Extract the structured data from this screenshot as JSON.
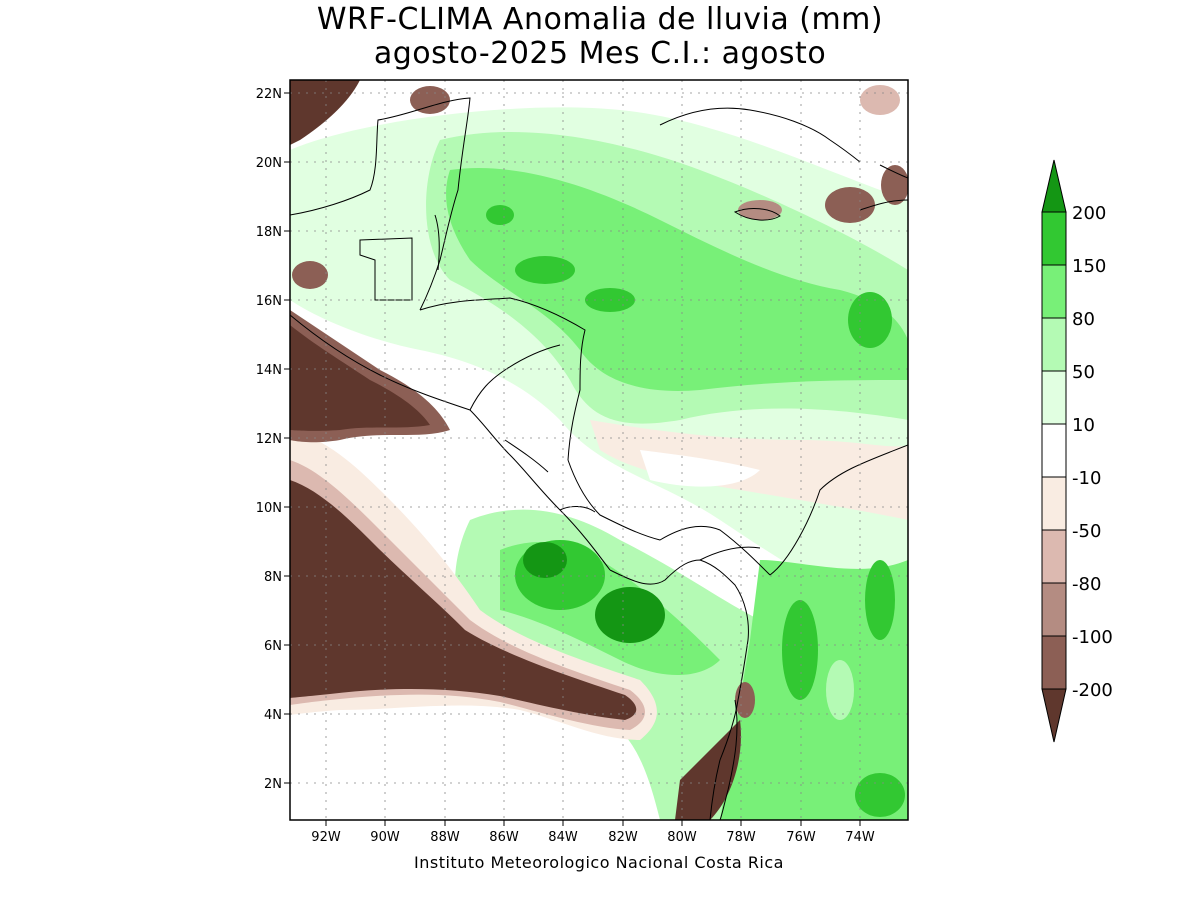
{
  "title_line1": "WRF-CLIMA Anomalia de lluvia (mm)",
  "title_line2": "agosto-2025 Mes C.I.: agosto",
  "credit": "Instituto Meteorologico Nacional Costa Rica",
  "map": {
    "lon_range": [
      -93.3,
      -72.5
    ],
    "lat_range": [
      1.0,
      22.5
    ],
    "lon_ticks": [
      "92W",
      "90W",
      "88W",
      "86W",
      "84W",
      "82W",
      "80W",
      "78W",
      "76W",
      "74W"
    ],
    "lat_ticks": [
      "2N",
      "4N",
      "6N",
      "8N",
      "10N",
      "12N",
      "14N",
      "16N",
      "18N",
      "20N",
      "22N"
    ],
    "gridlines": true
  },
  "colorbar": {
    "levels": [
      "200",
      "150",
      "80",
      "50",
      "10",
      "-10",
      "-50",
      "-80",
      "-100",
      "-200"
    ],
    "colors": [
      "#149614",
      "#32c832",
      "#78f078",
      "#b4fab4",
      "#e1ffe1",
      "#ffffff",
      "#f9ece2",
      "#dcb9b0",
      "#b48c82",
      "#8c5f55",
      "#5f372d"
    ]
  }
}
